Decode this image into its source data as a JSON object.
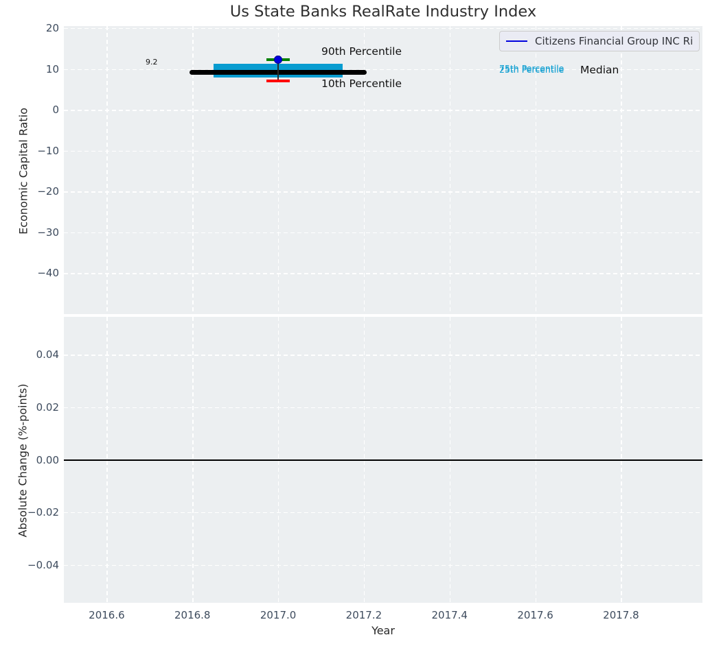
{
  "title": "Us State Banks RealRate Industry Index",
  "legend": {
    "label": "Citizens Financial Group INC Ri"
  },
  "top_chart": {
    "ylabel": "Economic Capital Ratio",
    "ytick_labels": [
      "20",
      "10",
      "0",
      "−10",
      "−20",
      "−30",
      "−40"
    ],
    "ytick_values": [
      20,
      10,
      0,
      -10,
      -20,
      -30,
      -40
    ],
    "annotations": {
      "value_label": "9.2",
      "p90": "90th Percentile",
      "p10": "10th Percentile",
      "p75": "75th Percentile",
      "p25": "25th Percentile",
      "median": "Median"
    }
  },
  "bottom_chart": {
    "ylabel": "Absolute Change (%-points)",
    "ytick_labels": [
      "0.04",
      "0.02",
      "0.00",
      "−0.02",
      "−0.04"
    ],
    "ytick_values": [
      0.04,
      0.02,
      0.0,
      -0.02,
      -0.04
    ]
  },
  "xaxis": {
    "label": "Year",
    "tick_labels": [
      "2016.6",
      "2016.8",
      "2017.0",
      "2017.2",
      "2017.4",
      "2017.6",
      "2017.8"
    ],
    "tick_values": [
      2016.6,
      2016.8,
      2017.0,
      2017.2,
      2017.4,
      2017.6,
      2017.8
    ]
  },
  "colors": {
    "plot_bg": "#eceff1",
    "grid": "#ffffff",
    "tick_label": "#3d4b5d",
    "box_fill": "#089cd0",
    "median_line": "#000000",
    "company_dot": "#0000dd",
    "p90_cap": "#008000",
    "p10_cap": "#ff0000",
    "legend_line": "#0000dd",
    "zero_line": "#000000",
    "percentile_text": "#089cd0"
  },
  "chart_data": [
    {
      "type": "box",
      "title": "Us State Banks RealRate Industry Index",
      "xlabel": "Year",
      "ylabel": "Economic Capital Ratio",
      "ylim": [
        -50,
        20.5
      ],
      "xlim": [
        2016.5,
        2017.99
      ],
      "grid": true,
      "legend_position": "upper right",
      "series_label": "Citizens Financial Group INC Ri",
      "points": [
        {
          "year": 2017.0,
          "company_value": 12.3,
          "p90": 12.3,
          "p75": 11.3,
          "median": 9.2,
          "p25": 7.9,
          "p10": 7.1,
          "median_label": "9.2",
          "median_span": [
            2016.8,
            2017.2
          ],
          "box_span": [
            2016.85,
            2017.15
          ],
          "cap_halfwidth_years": 0.027
        }
      ]
    },
    {
      "type": "line",
      "xlabel": "Year",
      "ylabel": "Absolute Change (%-points)",
      "ylim": [
        -0.0545,
        0.0545
      ],
      "xlim": [
        2016.5,
        2017.99
      ],
      "grid": true,
      "series": [
        {
          "name": "zero-change-line",
          "x": [
            2016.5,
            2017.99
          ],
          "y": [
            0,
            0
          ]
        }
      ]
    }
  ]
}
